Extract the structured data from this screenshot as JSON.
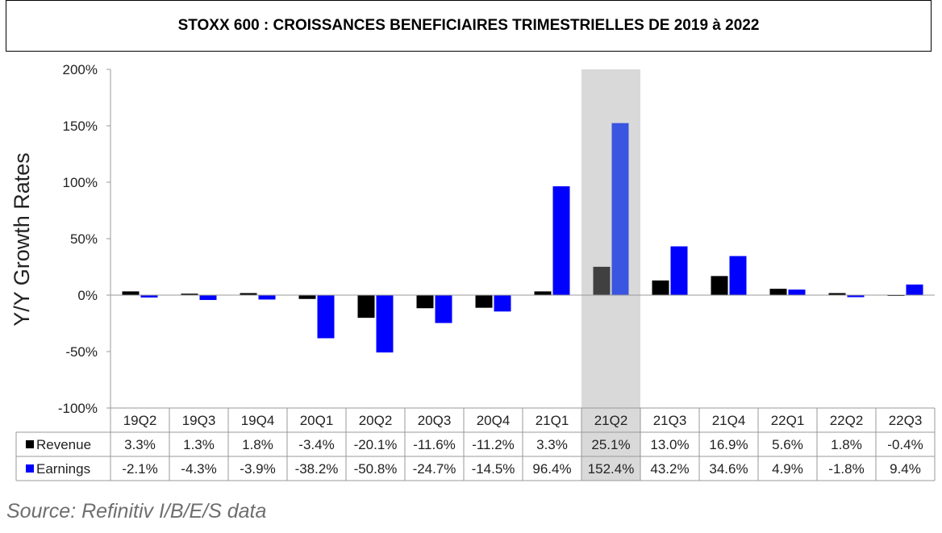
{
  "title": "STOXX 600 : CROISSANCES BENEFICIAIRES TRIMESTRIELLES DE 2019 à 2022",
  "source": "Source: Refinitiv I/B/E/S data",
  "chart_data": {
    "type": "bar",
    "ylabel": "Y/Y Growth Rates",
    "ylim": [
      -100,
      200
    ],
    "yticks": [
      -100,
      -50,
      0,
      50,
      100,
      150,
      200
    ],
    "ytick_labels": [
      "-100%",
      "-50%",
      "0%",
      "50%",
      "100%",
      "150%",
      "200%"
    ],
    "categories": [
      "19Q2",
      "19Q3",
      "19Q4",
      "20Q1",
      "20Q2",
      "20Q3",
      "20Q4",
      "21Q1",
      "21Q2",
      "21Q3",
      "21Q4",
      "22Q1",
      "22Q2",
      "22Q3"
    ],
    "highlight_category": "21Q2",
    "series": [
      {
        "name": "Revenue",
        "color": "#000000",
        "highlight_color": "#404040",
        "values": [
          3.3,
          1.3,
          1.8,
          -3.4,
          -20.1,
          -11.6,
          -11.2,
          3.3,
          25.1,
          13.0,
          16.9,
          5.6,
          1.8,
          -0.4
        ],
        "labels": [
          "3.3%",
          "1.3%",
          "1.8%",
          "-3.4%",
          "-20.1%",
          "-11.6%",
          "-11.2%",
          "3.3%",
          "25.1%",
          "13.0%",
          "16.9%",
          "5.6%",
          "1.8%",
          "-0.4%"
        ]
      },
      {
        "name": "Earnings",
        "color": "#0000ff",
        "highlight_color": "#3a55e0",
        "values": [
          -2.1,
          -4.3,
          -3.9,
          -38.2,
          -50.8,
          -24.7,
          -14.5,
          96.4,
          152.4,
          43.2,
          34.6,
          4.9,
          -1.8,
          9.4
        ],
        "labels": [
          "-2.1%",
          "-4.3%",
          "-3.9%",
          "-38.2%",
          "-50.8%",
          "-24.7%",
          "-14.5%",
          "96.4%",
          "152.4%",
          "43.2%",
          "34.6%",
          "4.9%",
          "-1.8%",
          "9.4%"
        ]
      }
    ]
  }
}
